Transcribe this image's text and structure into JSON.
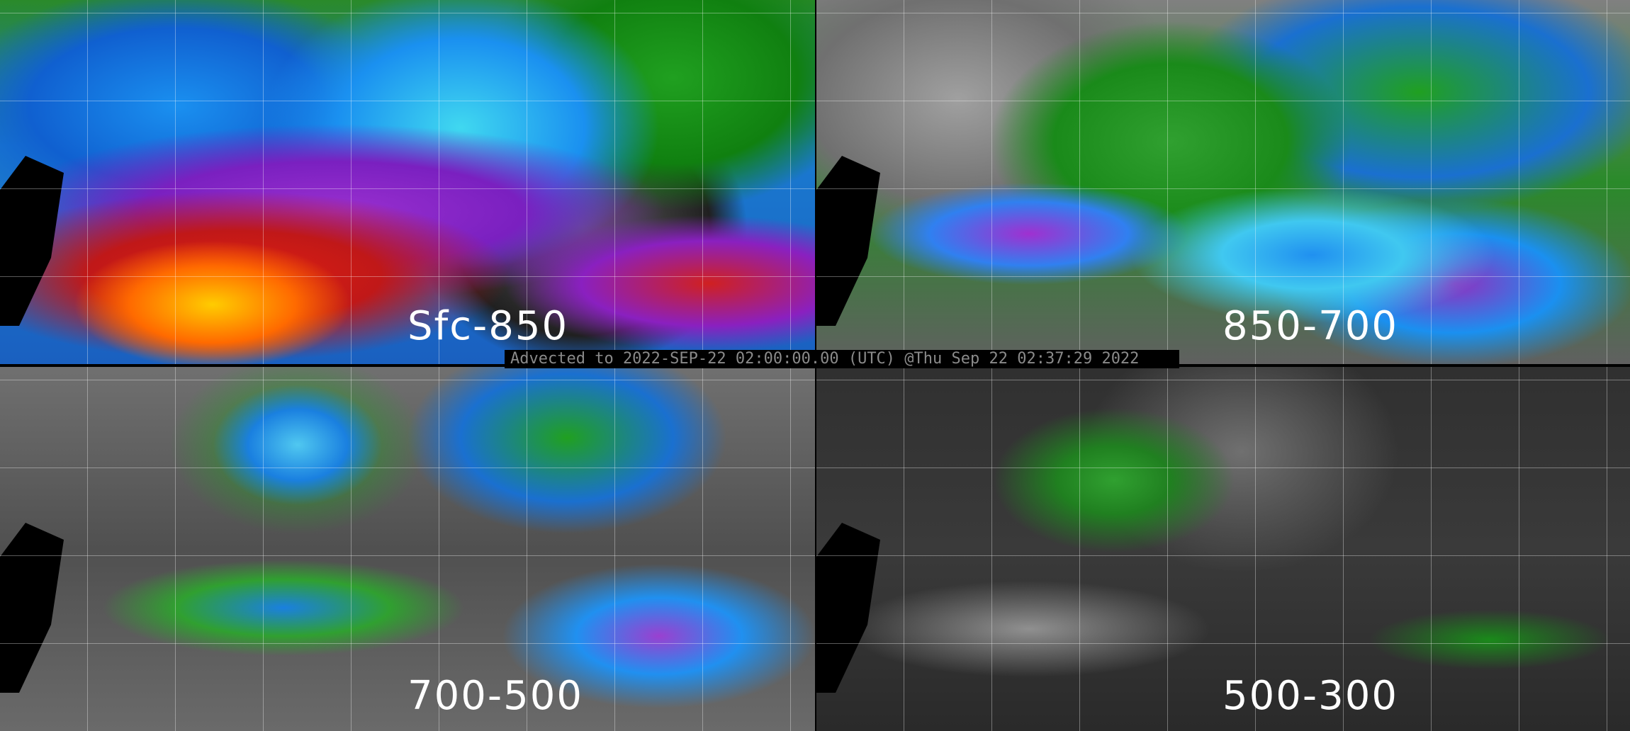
{
  "panels": [
    {
      "label": "Sfc-850"
    },
    {
      "label": "850-700"
    },
    {
      "label": "700-500"
    },
    {
      "label": "500-300"
    }
  ],
  "timestamp": "Advected to 2022-SEP-22 02:00:00.00 (UTC) @Thu Sep 22 02:37:29 2022"
}
